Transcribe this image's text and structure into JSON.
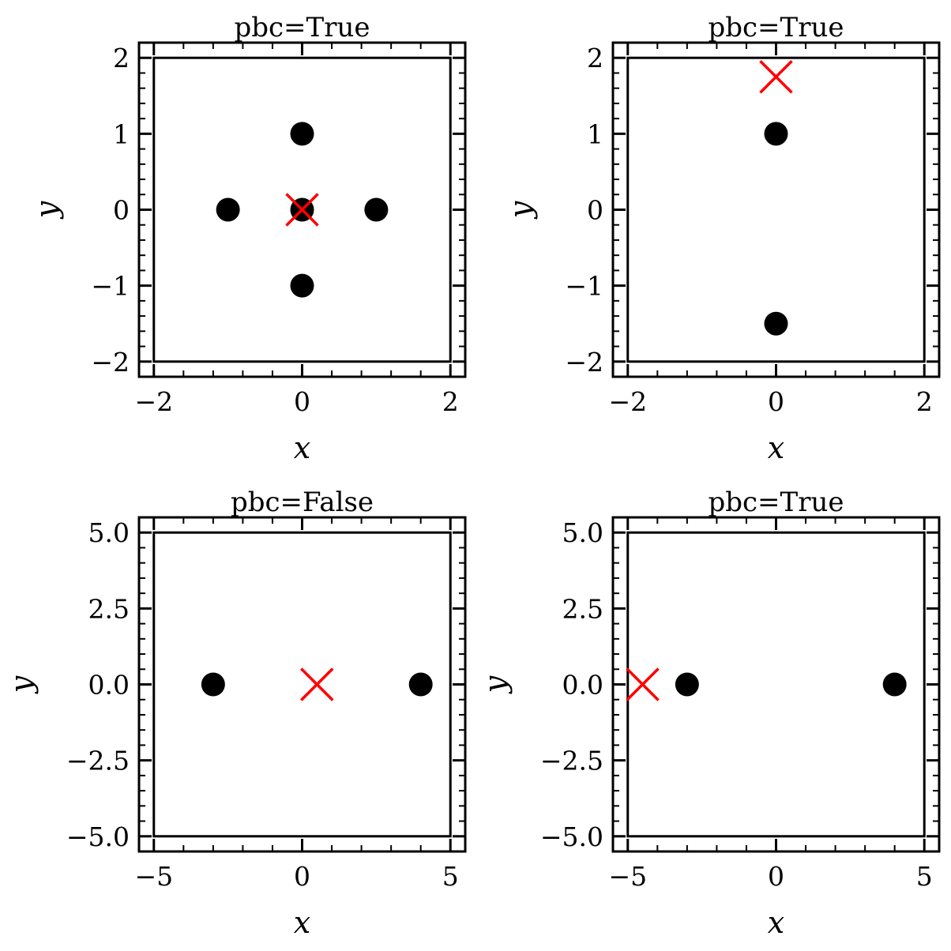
{
  "colors": {
    "points": "#000000",
    "marker": "#ff0000",
    "axes": "#000000",
    "box_lines": "#000000"
  },
  "chart_data": [
    {
      "type": "scatter",
      "title": "pbc=True",
      "xlabel": "x",
      "ylabel": "y",
      "xlim": [
        -2.2,
        2.2
      ],
      "ylim": [
        -2.2,
        2.2
      ],
      "xticks": [
        -2,
        0,
        2
      ],
      "xtick_labels": [
        "−2",
        "0",
        "2"
      ],
      "yticks": [
        -2,
        -1,
        0,
        1,
        2
      ],
      "ytick_labels": [
        "−2",
        "−1",
        "0",
        "1",
        "2"
      ],
      "xminor_step": 0.4,
      "yminor_step": 0.2,
      "box": [
        -2,
        2
      ],
      "grid": false,
      "points": [
        [
          0,
          1
        ],
        [
          -1,
          0
        ],
        [
          0,
          0
        ],
        [
          1,
          0
        ],
        [
          0,
          -1
        ]
      ],
      "cross": [
        0,
        0
      ]
    },
    {
      "type": "scatter",
      "title": "pbc=True",
      "xlabel": "x",
      "ylabel": "y",
      "xlim": [
        -2.2,
        2.2
      ],
      "ylim": [
        -2.2,
        2.2
      ],
      "xticks": [
        -2,
        0,
        2
      ],
      "xtick_labels": [
        "−2",
        "0",
        "2"
      ],
      "yticks": [
        -2,
        -1,
        0,
        1,
        2
      ],
      "ytick_labels": [
        "−2",
        "−1",
        "0",
        "1",
        "2"
      ],
      "xminor_step": 0.4,
      "yminor_step": 0.2,
      "box": [
        -2,
        2
      ],
      "grid": false,
      "points": [
        [
          0,
          1
        ],
        [
          0,
          -1.5
        ]
      ],
      "cross": [
        0,
        1.75
      ]
    },
    {
      "type": "scatter",
      "title": "pbc=False",
      "xlabel": "x",
      "ylabel": "y",
      "xlim": [
        -5.5,
        5.5
      ],
      "ylim": [
        -5.5,
        5.5
      ],
      "xticks": [
        -5,
        0,
        5
      ],
      "xtick_labels": [
        "−5",
        "0",
        "5"
      ],
      "yticks": [
        -5,
        -2.5,
        0,
        2.5,
        5
      ],
      "ytick_labels": [
        "−5.0",
        "−2.5",
        "0.0",
        "2.5",
        "5.0"
      ],
      "xminor_step": 1,
      "yminor_step": 0.5,
      "box": [
        -5,
        5
      ],
      "grid": false,
      "points": [
        [
          -3,
          0
        ],
        [
          4,
          0
        ]
      ],
      "cross": [
        0.5,
        0
      ]
    },
    {
      "type": "scatter",
      "title": "pbc=True",
      "xlabel": "x",
      "ylabel": "y",
      "xlim": [
        -5.5,
        5.5
      ],
      "ylim": [
        -5.5,
        5.5
      ],
      "xticks": [
        -5,
        0,
        5
      ],
      "xtick_labels": [
        "−5",
        "0",
        "5"
      ],
      "yticks": [
        -5,
        -2.5,
        0,
        2.5,
        5
      ],
      "ytick_labels": [
        "−5.0",
        "−2.5",
        "0.0",
        "2.5",
        "5.0"
      ],
      "xminor_step": 1,
      "yminor_step": 0.5,
      "box": [
        -5,
        5
      ],
      "grid": false,
      "points": [
        [
          -3,
          0
        ],
        [
          4,
          0
        ]
      ],
      "cross": [
        -4.5,
        0
      ]
    }
  ]
}
